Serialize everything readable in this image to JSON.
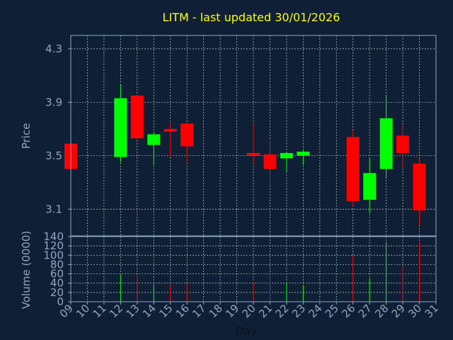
{
  "chart_data": {
    "type": "candlestick",
    "title": "LITM - last updated 30/01/2026",
    "xlabel": "Day",
    "x_ticks": [
      "09",
      "10",
      "11",
      "12",
      "13",
      "14",
      "15",
      "16",
      "17",
      "18",
      "19",
      "20",
      "21",
      "22",
      "23",
      "24",
      "25",
      "26",
      "27",
      "28",
      "29",
      "30",
      "31"
    ],
    "price_panel": {
      "ylabel": "Price",
      "ylim": [
        2.9,
        4.4
      ],
      "y_ticks": [
        "3.1",
        "3.5",
        "3.9",
        "4.3"
      ],
      "grid": true,
      "candles": [
        {
          "day": "09",
          "open": 3.59,
          "high": 3.59,
          "low": 3.4,
          "close": 3.4
        },
        {
          "day": "12",
          "open": 3.49,
          "high": 4.03,
          "low": 3.45,
          "close": 3.93
        },
        {
          "day": "13",
          "open": 3.95,
          "high": 3.95,
          "low": 3.62,
          "close": 3.63
        },
        {
          "day": "14",
          "open": 3.58,
          "high": 3.67,
          "low": 3.43,
          "close": 3.66
        },
        {
          "day": "15",
          "open": 3.7,
          "high": 3.74,
          "low": 3.49,
          "close": 3.68
        },
        {
          "day": "16",
          "open": 3.74,
          "high": 3.75,
          "low": 3.45,
          "close": 3.57
        },
        {
          "day": "20",
          "open": 3.52,
          "high": 3.74,
          "low": 3.44,
          "close": 3.5
        },
        {
          "day": "21",
          "open": 3.51,
          "high": 3.62,
          "low": 3.27,
          "close": 3.4
        },
        {
          "day": "22",
          "open": 3.48,
          "high": 3.53,
          "low": 3.38,
          "close": 3.52
        },
        {
          "day": "23",
          "open": 3.5,
          "high": 3.54,
          "low": 3.43,
          "close": 3.53
        },
        {
          "day": "26",
          "open": 3.64,
          "high": 3.69,
          "low": 3.12,
          "close": 3.16
        },
        {
          "day": "27",
          "open": 3.17,
          "high": 3.48,
          "low": 3.07,
          "close": 3.37
        },
        {
          "day": "28",
          "open": 3.4,
          "high": 3.95,
          "low": 3.33,
          "close": 3.78
        },
        {
          "day": "29",
          "open": 3.65,
          "high": 3.73,
          "low": 3.41,
          "close": 3.52
        },
        {
          "day": "30",
          "open": 3.44,
          "high": 3.48,
          "low": 2.98,
          "close": 3.09
        }
      ]
    },
    "volume_panel": {
      "ylabel": "Volume (0000)",
      "ylim": [
        0,
        140
      ],
      "y_ticks": [
        "0",
        "20",
        "40",
        "60",
        "80",
        "100",
        "120",
        "140"
      ],
      "grid": true,
      "bars": [
        {
          "day": "12",
          "value": 58,
          "direction": "up"
        },
        {
          "day": "13",
          "value": 55,
          "direction": "down"
        },
        {
          "day": "14",
          "value": 38,
          "direction": "up"
        },
        {
          "day": "15",
          "value": 35,
          "direction": "down"
        },
        {
          "day": "16",
          "value": 38,
          "direction": "down"
        },
        {
          "day": "20",
          "value": 42,
          "direction": "down"
        },
        {
          "day": "21",
          "value": 56,
          "direction": "down"
        },
        {
          "day": "22",
          "value": 40,
          "direction": "up"
        },
        {
          "day": "23",
          "value": 35,
          "direction": "up"
        },
        {
          "day": "26",
          "value": 100,
          "direction": "down"
        },
        {
          "day": "27",
          "value": 50,
          "direction": "up"
        },
        {
          "day": "28",
          "value": 128,
          "direction": "up"
        },
        {
          "day": "29",
          "value": 75,
          "direction": "down"
        },
        {
          "day": "30",
          "value": 128,
          "direction": "down"
        }
      ]
    },
    "colors": {
      "background": "#0f2036",
      "up": "#00ff00",
      "down": "#ff0000",
      "grid": "#c8c8c8",
      "axis": "#8fa6c2",
      "title": "#ffff00"
    }
  }
}
